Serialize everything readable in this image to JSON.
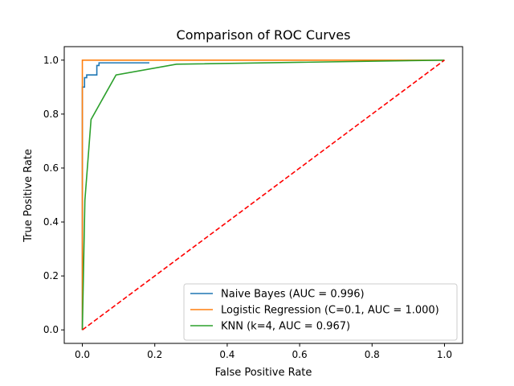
{
  "chart_data": {
    "type": "line",
    "title": "Comparison of ROC Curves",
    "xlabel": "False Positive Rate",
    "ylabel": "True Positive Rate",
    "xlim": [
      -0.05,
      1.05
    ],
    "ylim": [
      -0.05,
      1.05
    ],
    "xticks": [
      "0.0",
      "0.2",
      "0.4",
      "0.6",
      "0.8",
      "1.0"
    ],
    "yticks": [
      "0.0",
      "0.2",
      "0.4",
      "0.6",
      "0.8",
      "1.0"
    ],
    "grid": false,
    "legend_position": "lower-right",
    "series": [
      {
        "name": "Naive Bayes (AUC = 0.996)",
        "color": "#1f77b4",
        "x": [
          0.0,
          0.0,
          0.006,
          0.006,
          0.012,
          0.012,
          0.018,
          0.018,
          0.04,
          0.04,
          0.046,
          0.046,
          0.185
        ],
        "y": [
          0.0,
          0.9,
          0.9,
          0.935,
          0.935,
          0.945,
          0.945,
          0.945,
          0.945,
          0.98,
          0.98,
          0.99,
          0.99
        ]
      },
      {
        "name": "Logistic Regression (C=0.1, AUC = 1.000)",
        "color": "#ff7f0e",
        "x": [
          0.0,
          0.0,
          1.0
        ],
        "y": [
          0.0,
          1.0,
          1.0
        ]
      },
      {
        "name": "KNN (k=4, AUC = 0.967)",
        "color": "#2ca02c",
        "x": [
          0.0,
          0.007,
          0.024,
          0.093,
          0.26,
          1.0
        ],
        "y": [
          0.0,
          0.48,
          0.78,
          0.945,
          0.985,
          1.0
        ]
      },
      {
        "name": "",
        "color": "#ff0000",
        "dashed": true,
        "x": [
          0.0,
          1.0
        ],
        "y": [
          0.0,
          1.0
        ]
      }
    ]
  }
}
